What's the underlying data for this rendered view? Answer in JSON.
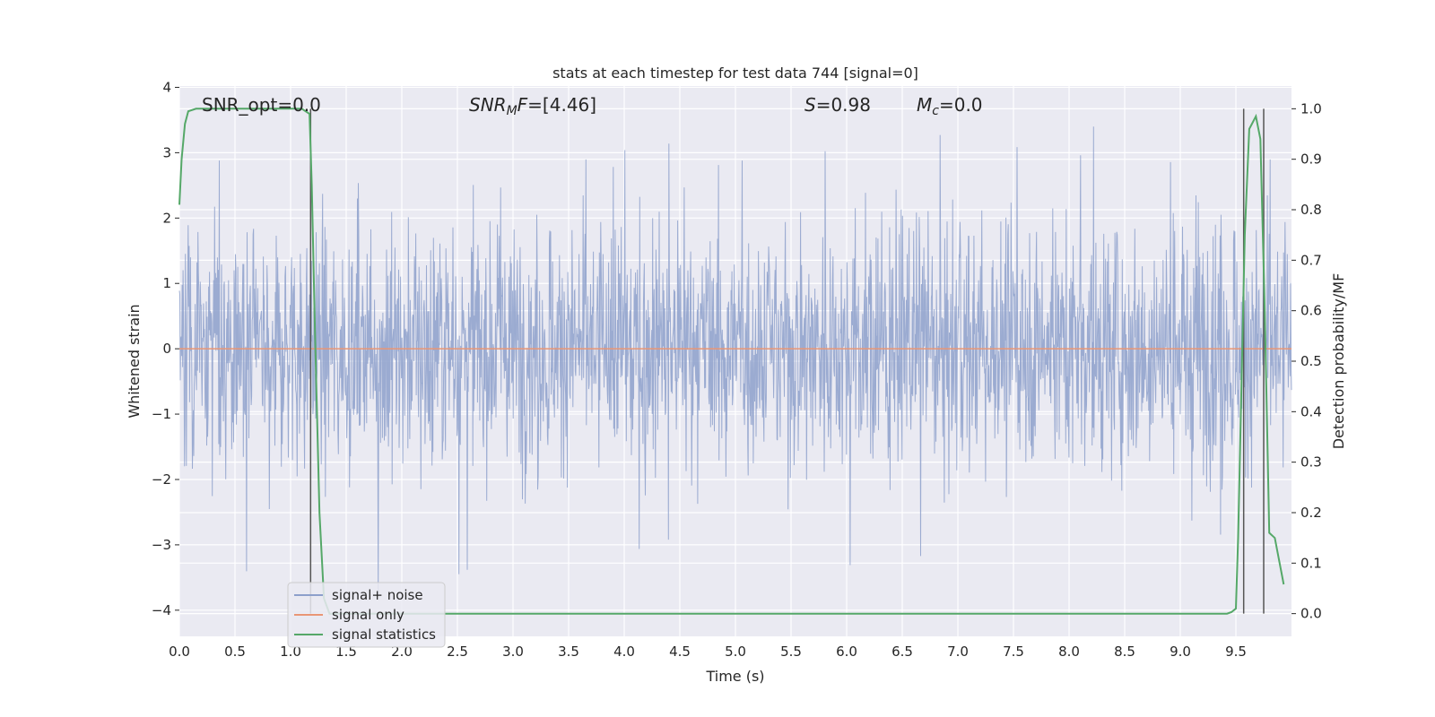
{
  "chart_data": {
    "type": "line",
    "title": "stats at each timestep for test data 744 [signal=0]",
    "xlabel": "Time (s)",
    "ylabel": "Whitened strain",
    "ylabel_right": "Detection probability/MF",
    "xlim": [
      0.0,
      10.0
    ],
    "ylim": [
      -4.4,
      4.02
    ],
    "ylim_right": [
      -0.045,
      1.045
    ],
    "xticks": [
      0.0,
      0.5,
      1.0,
      1.5,
      2.0,
      2.5,
      3.0,
      3.5,
      4.0,
      4.5,
      5.0,
      5.5,
      6.0,
      6.5,
      7.0,
      7.5,
      8.0,
      8.5,
      9.0,
      9.5
    ],
    "xtick_labels": [
      "0.0",
      "0.5",
      "1.0",
      "1.5",
      "2.0",
      "2.5",
      "3.0",
      "3.5",
      "4.0",
      "4.5",
      "5.0",
      "5.5",
      "6.0",
      "6.5",
      "7.0",
      "7.5",
      "8.0",
      "8.5",
      "9.0",
      "9.5"
    ],
    "yticks": [
      4,
      3,
      2,
      1,
      0,
      -1,
      -2,
      -3,
      -4
    ],
    "ytick_labels": [
      "4",
      "3",
      "2",
      "1",
      "0",
      "−1",
      "−2",
      "−3",
      "−4"
    ],
    "yticks_right": [
      1.0,
      0.9,
      0.8,
      0.7,
      0.6,
      0.5,
      0.4,
      0.3,
      0.2,
      0.1,
      0.0
    ],
    "ytick_labels_right": [
      "1.0",
      "0.9",
      "0.8",
      "0.7",
      "0.6",
      "0.5",
      "0.4",
      "0.3",
      "0.2",
      "0.1",
      "0.0"
    ],
    "annotations": {
      "snr_opt": "SNR_opt=0.0",
      "snr_mf_sym": "SNR",
      "snr_mf_sub": "M",
      "snr_mf_f": "F",
      "snr_mf_val": "=[4.46]",
      "s_sym": "S",
      "s_val": "=0.98",
      "mc_sym": "M",
      "mc_sub": "c",
      "mc_val": "=0.0"
    },
    "series": [
      {
        "name": "signal+ noise",
        "color": "#8da0cb",
        "kind": "noise_trace",
        "x_range": [
          0.0,
          10.0
        ],
        "typical_envelope": [
          -1.7,
          1.8
        ],
        "peak_max": 3.4,
        "peak_min": -4.0
      },
      {
        "name": "signal only",
        "color": "#e99675",
        "x": [
          0.0,
          10.0
        ],
        "y": [
          0.0,
          0.0
        ]
      },
      {
        "name": "signal statistics",
        "color": "#55a868",
        "axis": "right",
        "x": [
          0.0,
          0.02,
          0.05,
          0.08,
          0.15,
          0.3,
          0.6,
          0.9,
          1.1,
          1.17,
          1.19,
          1.22,
          1.26,
          1.3,
          1.35,
          2.0,
          3.0,
          4.0,
          5.0,
          6.0,
          7.0,
          8.0,
          9.0,
          9.3,
          9.42,
          9.46,
          9.5,
          9.52,
          9.55,
          9.58,
          9.62,
          9.68,
          9.72,
          9.76,
          9.8,
          9.85,
          9.93
        ],
        "y": [
          0.81,
          0.9,
          0.97,
          0.995,
          1.0,
          1.0,
          1.0,
          1.0,
          1.0,
          0.99,
          0.85,
          0.55,
          0.2,
          0.03,
          0.0,
          0.0,
          0.0,
          0.0,
          0.0,
          0.0,
          0.0,
          0.0,
          0.0,
          0.0,
          0.0,
          0.003,
          0.01,
          0.15,
          0.45,
          0.75,
          0.96,
          0.985,
          0.94,
          0.6,
          0.16,
          0.15,
          0.058
        ]
      }
    ],
    "vlines": [
      1.18,
      9.57,
      9.75
    ],
    "legend": {
      "position": "bottom-left",
      "entries": [
        "signal+ noise",
        "signal only",
        "signal statistics"
      ]
    }
  }
}
